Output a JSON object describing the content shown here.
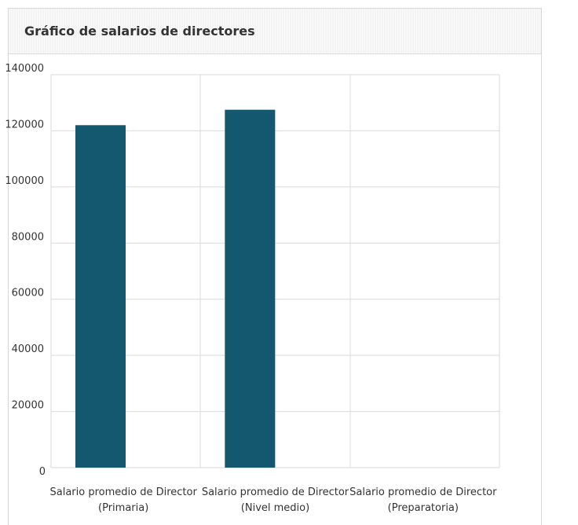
{
  "panel": {
    "title": "Gráfico de salarios de directores"
  },
  "colors": {
    "bar": "#14586f",
    "grid": "#d9d9d9",
    "text": "#333333"
  },
  "chart_data": {
    "type": "bar",
    "categories": [
      [
        "Salario promedio de Director",
        "(Primaria)"
      ],
      [
        "Salario promedio de Director",
        "(Nivel medio)"
      ],
      [
        "Salario promedio de Director",
        "(Preparatoria)"
      ]
    ],
    "values": [
      122000,
      127500,
      0
    ],
    "yticks": [
      "0",
      "20000",
      "40000",
      "60000",
      "80000",
      "100000",
      "120000",
      "140000"
    ],
    "ylim": [
      0,
      140000
    ],
    "grid": true,
    "legend": "none"
  }
}
